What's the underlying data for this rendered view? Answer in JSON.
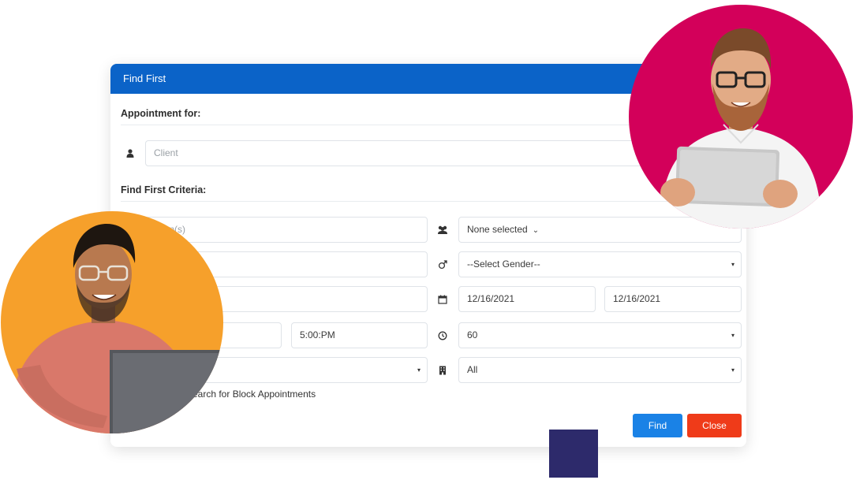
{
  "dialog": {
    "title": "Find First",
    "appointment_for_label": "Appointment for:",
    "client_placeholder": "Client",
    "criteria_label": "Find First Criteria:",
    "location_placeholder": "ation(s)",
    "staff_select": "None selected",
    "gender_select": "--Select Gender--",
    "start_date": "12/16/2021",
    "end_date": "12/16/2021",
    "end_time": "5:00:PM",
    "duration_select": "60",
    "room_select": "All",
    "block_checkbox_label": "earch for Block Appointments",
    "find_button": "Find",
    "close_button": "Close"
  },
  "colors": {
    "header": "#0b63c8",
    "find": "#1a82e6",
    "close": "#ef3b19",
    "circle_right": "#d3005a",
    "circle_left": "#f6a02b",
    "square": "#2d2a6b"
  },
  "icons": [
    "user-icon",
    "users-icon",
    "gender-icon",
    "calendar-icon",
    "clock-icon",
    "building-icon",
    "chevron-down-icon",
    "caret-down-icon"
  ]
}
